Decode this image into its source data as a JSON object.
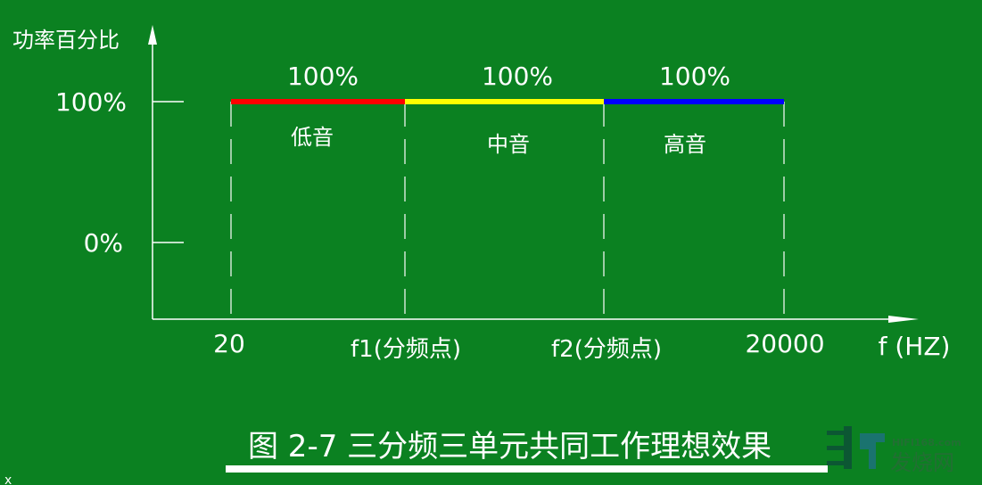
{
  "y_axis": {
    "label": "功率百分比",
    "ticks": [
      "100%",
      "0%"
    ]
  },
  "x_axis": {
    "ticks": [
      "20",
      "f1(分频点)",
      "f2(分频点)",
      "20000"
    ],
    "unit_label": "f (HZ)"
  },
  "bands": [
    {
      "name": "低音",
      "level_label": "100%",
      "level": 100,
      "color": "#ff0000"
    },
    {
      "name": "中音",
      "level_label": "100%",
      "level": 100,
      "color": "#ffff00"
    },
    {
      "name": "高音",
      "level_label": "100%",
      "level": 100,
      "color": "#0000ff"
    }
  ],
  "caption": "图 2-7  三分频三单元共同工作理想效果",
  "corner_mark": "x",
  "watermark": {
    "site": "HIFI168.com",
    "name": "发烧网"
  }
}
